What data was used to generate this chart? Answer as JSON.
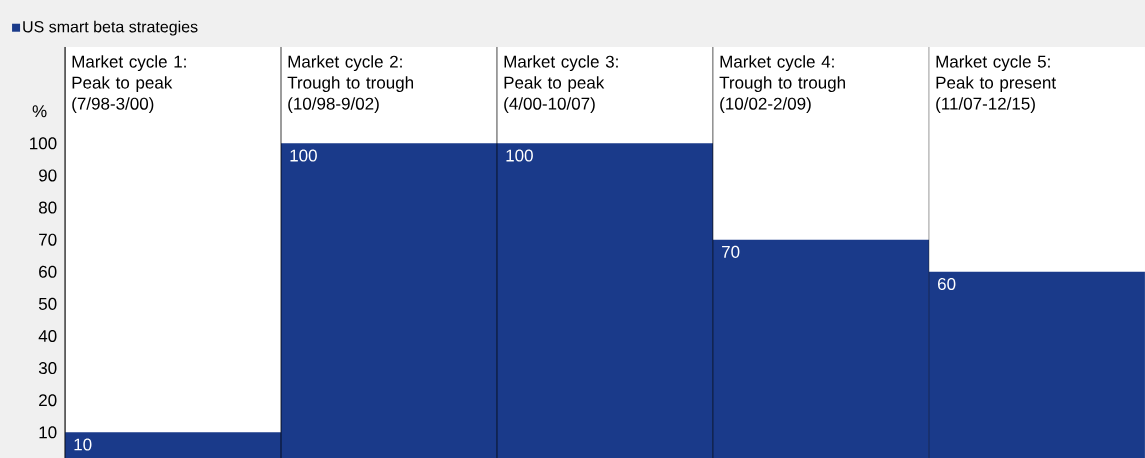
{
  "chart_data": {
    "type": "bar",
    "categories": [
      "Market cycle 1: Peak to peak (7/98-3/00)",
      "Market cycle 2: Trough to trough (10/98-9/02)",
      "Market cycle 3: Peak to peak (4/00-10/07)",
      "Market cycle 4: Trough to trough (10/02-2/09)",
      "Market cycle 5: Peak to present (11/07-12/15)"
    ],
    "series": [
      {
        "name": "US smart beta strategies",
        "color": "#1a3a8a",
        "values": [
          10,
          100,
          100,
          70,
          60
        ]
      }
    ],
    "ylabel": "%",
    "ylim": [
      2,
      130
    ],
    "yticks": [
      10,
      20,
      30,
      40,
      50,
      60,
      70,
      80,
      90,
      100
    ],
    "data_labels": true,
    "legend": "top left",
    "grid": false
  }
}
